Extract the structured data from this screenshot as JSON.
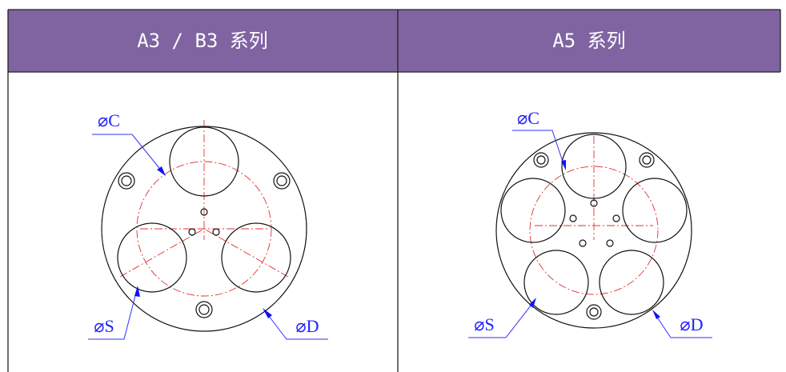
{
  "table": {
    "headers": [
      "A3 / B3 系列",
      "A5 系列"
    ]
  },
  "drawings": [
    {
      "labels": [
        "⌀C",
        "⌀S",
        "⌀D"
      ]
    },
    {
      "labels": [
        "⌀C",
        "⌀S",
        "⌀D"
      ]
    }
  ]
}
